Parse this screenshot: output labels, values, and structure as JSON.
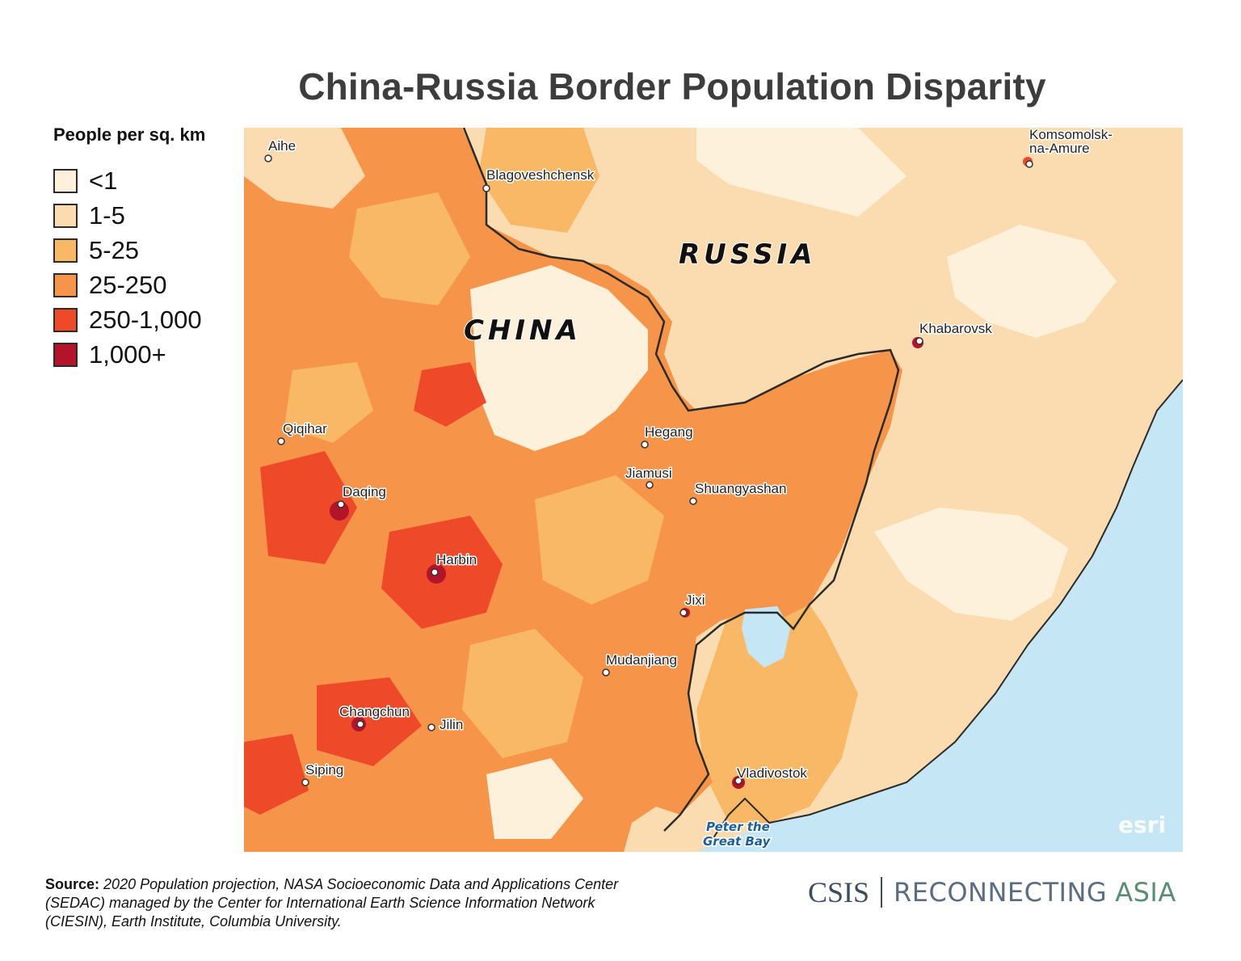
{
  "title": "China-Russia Border Population Disparity",
  "legend": {
    "title": "People per sq. km",
    "items": [
      {
        "label": "<1",
        "color": "#fdf1dc"
      },
      {
        "label": "1-5",
        "color": "#fbdcb0"
      },
      {
        "label": "5-25",
        "color": "#f8b865"
      },
      {
        "label": "25-250",
        "color": "#f6954a"
      },
      {
        "label": "250-1,000",
        "color": "#ee4a2a"
      },
      {
        "label": "1,000+",
        "color": "#b3142a"
      }
    ]
  },
  "map": {
    "country_labels": {
      "russia": "RUSSIA",
      "china": "CHINA"
    },
    "cities": [
      {
        "name": "Aihe"
      },
      {
        "name": "Blagoveshchensk"
      },
      {
        "name": "Komsomolsk-"
      },
      {
        "name": "na-Amure"
      },
      {
        "name": "Khabarovsk"
      },
      {
        "name": "Qiqihar"
      },
      {
        "name": "Hegang"
      },
      {
        "name": "Jiamusi"
      },
      {
        "name": "Shuangyashan"
      },
      {
        "name": "Daqing"
      },
      {
        "name": "Harbin"
      },
      {
        "name": "Jixi"
      },
      {
        "name": "Mudanjiang"
      },
      {
        "name": "Changchun"
      },
      {
        "name": "Jilin"
      },
      {
        "name": "Siping"
      },
      {
        "name": "Vladivostok"
      }
    ],
    "water_label_lines": [
      "Peter the",
      "Great Bay"
    ],
    "watermark": "esri",
    "colors": {
      "water": "#c5e6f5",
      "border": "#2a2a2a"
    }
  },
  "source": {
    "label": "Source:",
    "text": "2020 Population projection, NASA Socioeconomic Data and Applications Center (SEDAC) managed by the Center for International Earth Science Information Network (CIESIN), Earth Institute, Columbia University."
  },
  "brand": {
    "csis": "CSIS",
    "reconnecting": "RECONNECTING",
    "asia": "ASIA"
  }
}
